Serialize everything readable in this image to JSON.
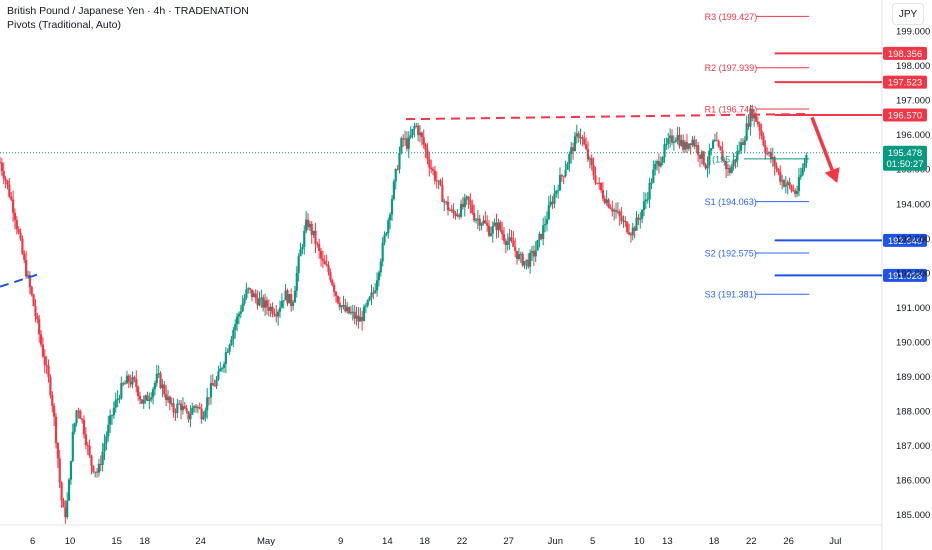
{
  "header": {
    "title": "British Pound / Japanese Yen · 4h · TRADENATION",
    "indicator": "Pivots (Traditional, Auto)",
    "currency": "JPY"
  },
  "colors": {
    "up": "#089981",
    "down": "#f23645",
    "resistance": "#f23645",
    "support": "#1e53e5",
    "pivot_r": "#f23645",
    "pivot_s": "#2962ff",
    "pivot_p": "#089981"
  },
  "chart_data": {
    "type": "candlestick",
    "symbol": "British Pound / Japanese Yen",
    "interval": "4h",
    "ylim": [
      184.7,
      199.9
    ],
    "y_ticks": [
      185.0,
      186.0,
      187.0,
      188.0,
      189.0,
      190.0,
      191.0,
      192.0,
      193.0,
      194.0,
      195.0,
      196.0,
      197.0,
      198.0,
      199.0
    ],
    "y_tick_labels": [
      "185.000",
      "186.000",
      "187.000",
      "188.000",
      "189.000",
      "190.000",
      "191.000",
      "192.000",
      "193.000",
      "194.000",
      "195.000",
      "196.000",
      "197.000",
      "198.000",
      "199.000"
    ],
    "x_ticks": [
      {
        "label": "6",
        "day": 6
      },
      {
        "label": "10",
        "day": 10
      },
      {
        "label": "15",
        "day": 15
      },
      {
        "label": "18",
        "day": 18
      },
      {
        "label": "24",
        "day": 24
      },
      {
        "label": "May",
        "day": 31
      },
      {
        "label": "9",
        "day": 39
      },
      {
        "label": "14",
        "day": 44
      },
      {
        "label": "18",
        "day": 48
      },
      {
        "label": "22",
        "day": 52
      },
      {
        "label": "27",
        "day": 57
      },
      {
        "label": "Jun",
        "day": 62
      },
      {
        "label": "5",
        "day": 66
      },
      {
        "label": "10",
        "day": 71
      },
      {
        "label": "13",
        "day": 74
      },
      {
        "label": "18",
        "day": 79
      },
      {
        "label": "22",
        "day": 83
      },
      {
        "label": "26",
        "day": 87
      },
      {
        "label": "Jul",
        "day": 92
      }
    ],
    "x_range": [
      2.5,
      97.0
    ],
    "path": [
      [
        2.5,
        195.2
      ],
      [
        3.0,
        194.8
      ],
      [
        4.0,
        193.8
      ],
      [
        5.0,
        192.4
      ],
      [
        6.0,
        191.2
      ],
      [
        7.0,
        189.8
      ],
      [
        8.0,
        188.5
      ],
      [
        8.6,
        187.0
      ],
      [
        9.0,
        185.6
      ],
      [
        9.4,
        184.9
      ],
      [
        9.8,
        185.5
      ],
      [
        10.2,
        187.1
      ],
      [
        10.8,
        188.2
      ],
      [
        11.4,
        187.6
      ],
      [
        12.2,
        186.5
      ],
      [
        13.0,
        186.2
      ],
      [
        13.8,
        187.2
      ],
      [
        14.6,
        188.0
      ],
      [
        15.4,
        188.6
      ],
      [
        16.2,
        188.9
      ],
      [
        17.0,
        188.8
      ],
      [
        17.8,
        188.2
      ],
      [
        18.6,
        188.5
      ],
      [
        19.4,
        189.0
      ],
      [
        20.2,
        188.5
      ],
      [
        21.0,
        188.0
      ],
      [
        21.8,
        188.2
      ],
      [
        22.6,
        187.8
      ],
      [
        23.4,
        188.2
      ],
      [
        24.2,
        187.9
      ],
      [
        25.0,
        188.6
      ],
      [
        25.8,
        188.9
      ],
      [
        26.6,
        189.6
      ],
      [
        27.4,
        190.3
      ],
      [
        28.2,
        190.9
      ],
      [
        29.0,
        191.5
      ],
      [
        29.8,
        191.3
      ],
      [
        30.6,
        191.1
      ],
      [
        31.4,
        191.0
      ],
      [
        32.2,
        190.9
      ],
      [
        33.0,
        191.4
      ],
      [
        33.8,
        191.1
      ],
      [
        34.6,
        192.5
      ],
      [
        35.4,
        193.5
      ],
      [
        36.2,
        193.0
      ],
      [
        37.0,
        192.3
      ],
      [
        37.8,
        192.0
      ],
      [
        38.6,
        191.3
      ],
      [
        39.4,
        190.9
      ],
      [
        40.2,
        190.8
      ],
      [
        41.0,
        190.6
      ],
      [
        41.8,
        191.0
      ],
      [
        42.6,
        191.5
      ],
      [
        43.4,
        192.6
      ],
      [
        44.2,
        193.7
      ],
      [
        45.0,
        195.0
      ],
      [
        45.6,
        195.9
      ],
      [
        46.2,
        195.7
      ],
      [
        47.0,
        196.3
      ],
      [
        47.8,
        195.8
      ],
      [
        48.6,
        195.1
      ],
      [
        49.4,
        194.6
      ],
      [
        50.2,
        194.0
      ],
      [
        51.0,
        193.7
      ],
      [
        51.8,
        193.8
      ],
      [
        52.6,
        194.1
      ],
      [
        53.4,
        193.6
      ],
      [
        54.2,
        193.5
      ],
      [
        55.0,
        193.2
      ],
      [
        55.8,
        193.4
      ],
      [
        56.6,
        193.0
      ],
      [
        57.4,
        192.8
      ],
      [
        58.2,
        192.4
      ],
      [
        59.0,
        192.3
      ],
      [
        59.8,
        192.6
      ],
      [
        60.6,
        193.2
      ],
      [
        61.4,
        193.9
      ],
      [
        62.2,
        194.5
      ],
      [
        63.0,
        195.0
      ],
      [
        63.8,
        195.6
      ],
      [
        64.6,
        196.1
      ],
      [
        65.4,
        195.4
      ],
      [
        66.2,
        194.8
      ],
      [
        67.0,
        194.3
      ],
      [
        67.8,
        194.0
      ],
      [
        68.6,
        193.7
      ],
      [
        69.4,
        193.4
      ],
      [
        70.2,
        193.2
      ],
      [
        71.0,
        193.6
      ],
      [
        71.8,
        194.2
      ],
      [
        72.6,
        195.0
      ],
      [
        73.4,
        195.4
      ],
      [
        74.2,
        195.8
      ],
      [
        75.0,
        196.0
      ],
      [
        75.8,
        195.6
      ],
      [
        76.6,
        195.9
      ],
      [
        77.4,
        195.5
      ],
      [
        78.2,
        195.1
      ],
      [
        79.0,
        195.8
      ],
      [
        79.8,
        195.4
      ],
      [
        80.6,
        194.9
      ],
      [
        81.4,
        195.4
      ],
      [
        82.2,
        195.9
      ],
      [
        83.0,
        196.7
      ],
      [
        83.8,
        196.3
      ],
      [
        84.6,
        195.5
      ],
      [
        85.4,
        195.2
      ],
      [
        86.2,
        194.7
      ],
      [
        87.0,
        194.5
      ],
      [
        87.8,
        194.3
      ],
      [
        88.6,
        195.1
      ],
      [
        89.0,
        195.5
      ]
    ],
    "last_price": "195.478",
    "countdown": "01:50:27",
    "dashed_resistance": {
      "from": {
        "day": 46,
        "y": 196.45
      },
      "to": {
        "day": 89,
        "y": 196.6
      }
    },
    "dashed_support": {
      "from": {
        "day": 2.5,
        "y": 191.6
      },
      "to": {
        "day": 6.5,
        "y": 191.95
      }
    },
    "pivots": [
      {
        "label": "R3 (199.427)",
        "y": 199.427,
        "kind": "r"
      },
      {
        "label": "R2 (197.939)",
        "y": 197.939,
        "kind": "r"
      },
      {
        "label": "R1 (196.745)",
        "y": 196.745,
        "kind": "r"
      },
      {
        "label": "(195.3",
        "y": 195.3,
        "kind": "p"
      },
      {
        "label": "S1 (194.063)",
        "y": 194.063,
        "kind": "s"
      },
      {
        "label": "S2 (192.575)",
        "y": 192.575,
        "kind": "s"
      },
      {
        "label": "S3 (191.381)",
        "y": 191.381,
        "kind": "s"
      }
    ],
    "levels": [
      {
        "label": "198.356",
        "y": 198.356,
        "kind": "resistance",
        "start_day": 85.5
      },
      {
        "label": "197.523",
        "y": 197.523,
        "kind": "resistance",
        "start_day": 85.5
      },
      {
        "label": "196.570",
        "y": 196.57,
        "kind": "resistance",
        "start_day": 85.5
      },
      {
        "label": "192.940",
        "y": 192.94,
        "kind": "support",
        "start_day": 85.5
      },
      {
        "label": "191.928",
        "y": 191.928,
        "kind": "support",
        "start_day": 85.5
      }
    ],
    "forecast_arrow": {
      "from": {
        "day": 89.5,
        "y": 196.5
      },
      "to": {
        "day": 92.2,
        "y": 194.6
      }
    }
  }
}
